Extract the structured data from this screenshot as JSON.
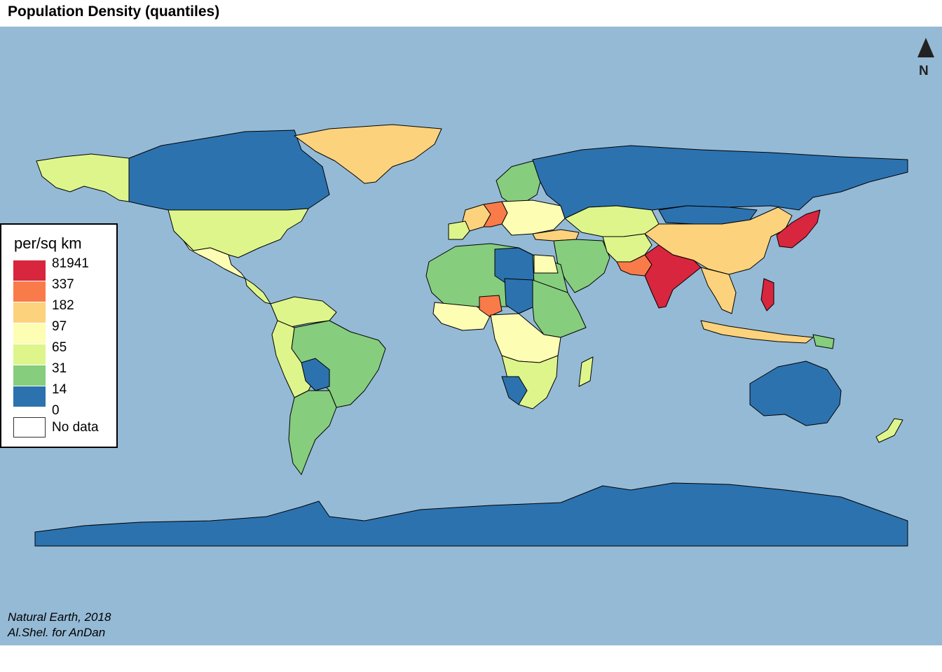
{
  "title": "Population Density (quantiles)",
  "legend": {
    "title": "per/sq km",
    "breaks": [
      "81941",
      "337",
      "182",
      "97",
      "65",
      "31",
      "14",
      "0"
    ],
    "colors": [
      "#d7263d",
      "#f97b4a",
      "#fcd27d",
      "#fdfdb4",
      "#def58c",
      "#86cd7e",
      "#2c72af"
    ],
    "no_data_label": "No data"
  },
  "credits": {
    "line1": "Natural Earth, 2018",
    "line2": "Al.Shel. for AnDan"
  },
  "north_arrow": {
    "label": "N",
    "icon": "north-arrow-icon"
  },
  "colors": {
    "ocean": "#95bad6",
    "border": "#000000"
  }
}
